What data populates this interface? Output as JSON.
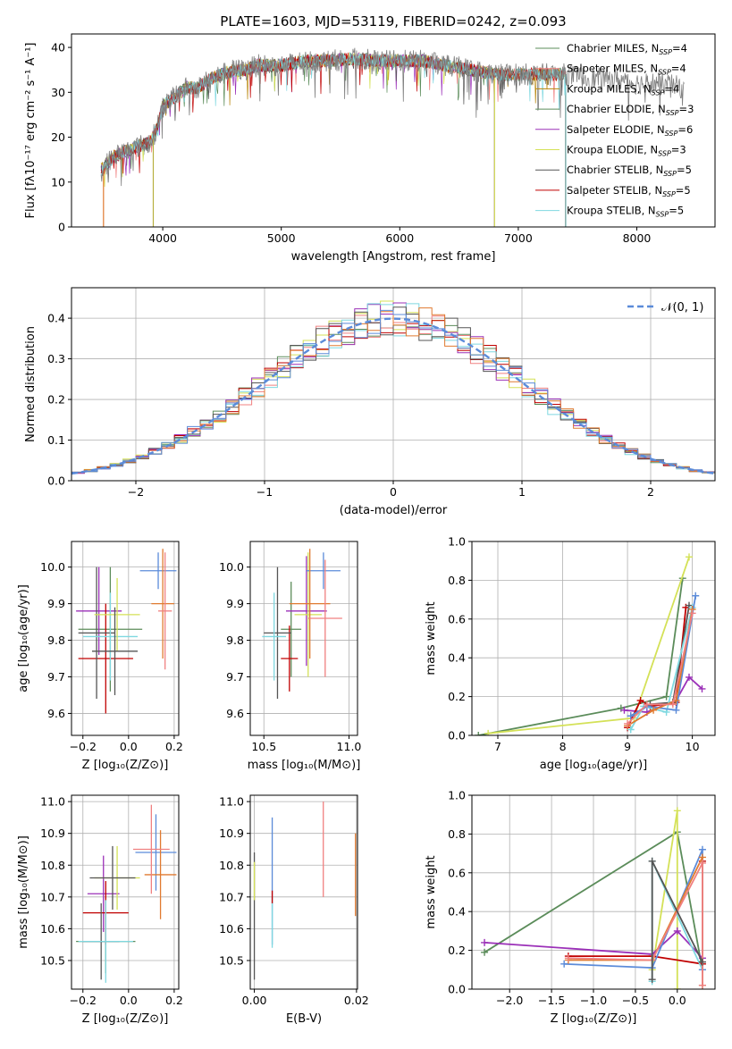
{
  "chart_data": [
    {
      "id": "spectrum",
      "type": "line",
      "title": "PLATE=1603, MJD=53119, FIBERID=0242, z=0.093",
      "xlabel": "wavelength [Angstrom, rest frame]",
      "ylabel": "Flux [fλ10⁻¹⁷ erg cm⁻² s⁻¹ A⁻¹]",
      "xlim": [
        3230,
        8660
      ],
      "ylim": [
        0,
        43
      ],
      "xticks": [
        4000,
        5000,
        6000,
        7000,
        8000
      ],
      "yticks": [
        0,
        10,
        20,
        30,
        40
      ],
      "grid": false,
      "legend_position": "upper right",
      "observed_color": "#808080",
      "envelope": {
        "x": [
          3500,
          3520,
          3600,
          3700,
          3800,
          3900,
          3950,
          4000,
          4100,
          4200,
          4300,
          4400,
          4500,
          4600,
          4700,
          4800,
          4900,
          5000,
          5200,
          5400,
          5600,
          5800,
          6000,
          6200,
          6400,
          6600,
          6800,
          7000,
          7200,
          7400,
          7600,
          7800,
          8000,
          8200,
          8400
        ],
        "y": [
          13,
          14,
          16,
          17,
          18,
          19,
          22,
          27,
          29,
          31,
          31,
          33,
          34,
          35,
          35,
          36,
          36,
          36,
          37,
          37,
          37.5,
          37,
          37,
          37,
          36,
          35,
          34,
          34,
          34,
          34,
          33,
          33,
          32,
          32,
          31
        ]
      },
      "series": [
        {
          "name": "Chabrier MILES, N",
          "sub": "SSP",
          "suffix": "=4",
          "color": "#5b8c5a",
          "end": 7400
        },
        {
          "name": "Salpeter MILES, N",
          "sub": "SSP",
          "suffix": "=4",
          "color": "#f08080",
          "end": 7400
        },
        {
          "name": "Kroupa MILES, N",
          "sub": "SSP",
          "suffix": "=4",
          "color": "#b8860b",
          "end": 7400
        },
        {
          "name": "Chabrier ELODIE, N",
          "sub": "SSP",
          "suffix": "=3",
          "color": "#5b8c5a",
          "end": 6800
        },
        {
          "name": "Salpeter ELODIE, N",
          "sub": "SSP",
          "suffix": "=6",
          "color": "#9b30b8",
          "end": 6800
        },
        {
          "name": "Kroupa ELODIE, N",
          "sub": "SSP",
          "suffix": "=3",
          "color": "#d4e157",
          "end": 6800
        },
        {
          "name": "Chabrier STELIB, N",
          "sub": "SSP",
          "suffix": "=5",
          "color": "#555555",
          "end": 7400
        },
        {
          "name": "Salpeter STELIB, N",
          "sub": "SSP",
          "suffix": "=5",
          "color": "#c00000",
          "end": 7400
        },
        {
          "name": "Kroupa STELIB, N",
          "sub": "SSP",
          "suffix": "=5",
          "color": "#7fd8e0",
          "end": 7400
        }
      ]
    },
    {
      "id": "residual-histogram",
      "type": "bar",
      "xlabel": "(data-model)/error",
      "ylabel": "Normed distribution",
      "xlim": [
        -2.5,
        2.5
      ],
      "ylim": [
        0,
        0.475
      ],
      "xticks": [
        -2,
        -1,
        0,
        1,
        2
      ],
      "yticks": [
        0.0,
        0.1,
        0.2,
        0.3,
        0.4
      ],
      "grid": true,
      "legend": {
        "label": "𝒩(0, 1)",
        "position": "upper right",
        "color": "#5b8bd9"
      },
      "bin_width": 0.1,
      "series_colors": [
        "#5b8c5a",
        "#f08080",
        "#d4e157",
        "#9b30b8",
        "#c00000",
        "#7fd8e0",
        "#555555",
        "#e07a30",
        "#5b8bd9"
      ]
    },
    {
      "id": "age-vs-metallicity",
      "type": "scatter",
      "xlabel": "Z [log₁₀(Z/Z⊙)]",
      "ylabel": "age  [log₁₀(age/yr)]",
      "xlim": [
        -0.25,
        0.22
      ],
      "ylim": [
        9.54,
        10.07
      ],
      "xticks": [
        -0.2,
        0.0,
        0.2
      ],
      "yticks": [
        9.6,
        9.7,
        9.8,
        9.9,
        10.0
      ],
      "points": [
        {
          "x": -0.08,
          "xerr": 0.14,
          "y": 9.83,
          "yerr": 0.17,
          "color": "#5b8c5a"
        },
        {
          "x": -0.13,
          "xerr": 0.1,
          "y": 9.88,
          "yerr": 0.12,
          "color": "#9b30b8"
        },
        {
          "x": -0.1,
          "xerr": 0.12,
          "y": 9.75,
          "yerr": 0.15,
          "color": "#c00000"
        },
        {
          "x": -0.14,
          "xerr": 0.08,
          "y": 9.82,
          "yerr": 0.18,
          "color": "#555555"
        },
        {
          "x": -0.08,
          "xerr": 0.12,
          "y": 9.81,
          "yerr": 0.12,
          "color": "#7fd8e0"
        },
        {
          "x": -0.05,
          "xerr": 0.1,
          "y": 9.87,
          "yerr": 0.1,
          "color": "#d4e157"
        },
        {
          "x": 0.13,
          "xerr": 0.08,
          "y": 9.99,
          "yerr": 0.05,
          "color": "#5b8bd9"
        },
        {
          "x": 0.15,
          "xerr": 0.05,
          "y": 9.9,
          "yerr": 0.15,
          "color": "#e07a30"
        },
        {
          "x": 0.16,
          "xerr": 0.03,
          "y": 9.88,
          "yerr": 0.16,
          "color": "#f08080"
        },
        {
          "x": -0.06,
          "xerr": 0.1,
          "y": 9.77,
          "yerr": 0.12,
          "color": "#555555"
        }
      ]
    },
    {
      "id": "age-vs-mass",
      "type": "scatter",
      "xlabel": "mass [log₁₀(M/M⊙)]",
      "ylabel": "",
      "xlim": [
        10.42,
        11.05
      ],
      "ylim": [
        9.54,
        10.07
      ],
      "xticks": [
        10.5,
        11.0
      ],
      "yticks": [
        9.6,
        9.7,
        9.8,
        9.9,
        10.0
      ],
      "points": [
        {
          "x": 10.66,
          "xerr": 0.06,
          "y": 9.83,
          "yerr": 0.13,
          "color": "#5b8c5a"
        },
        {
          "x": 10.75,
          "xerr": 0.12,
          "y": 9.88,
          "yerr": 0.15,
          "color": "#9b30b8"
        },
        {
          "x": 10.65,
          "xerr": 0.05,
          "y": 9.75,
          "yerr": 0.09,
          "color": "#c00000"
        },
        {
          "x": 10.58,
          "xerr": 0.08,
          "y": 9.82,
          "yerr": 0.18,
          "color": "#555555"
        },
        {
          "x": 10.56,
          "xerr": 0.07,
          "y": 9.81,
          "yerr": 0.12,
          "color": "#7fd8e0"
        },
        {
          "x": 10.76,
          "xerr": 0.08,
          "y": 9.87,
          "yerr": 0.17,
          "color": "#d4e157"
        },
        {
          "x": 10.85,
          "xerr": 0.1,
          "y": 9.99,
          "yerr": 0.05,
          "color": "#5b8bd9"
        },
        {
          "x": 10.77,
          "xerr": 0.12,
          "y": 9.9,
          "yerr": 0.15,
          "color": "#e07a30"
        },
        {
          "x": 10.86,
          "xerr": 0.1,
          "y": 9.86,
          "yerr": 0.16,
          "color": "#f08080"
        }
      ]
    },
    {
      "id": "weight-vs-age",
      "type": "line",
      "xlabel": "age  [log₁₀(age/yr)]",
      "ylabel": "mass weight",
      "xlim": [
        6.6,
        10.35
      ],
      "ylim": [
        0,
        1.0
      ],
      "xticks": [
        7,
        8,
        9,
        10
      ],
      "yticks": [
        0.0,
        0.2,
        0.4,
        0.6,
        0.8,
        1.0
      ],
      "grid": true,
      "series": [
        {
          "color": "#5b8c5a",
          "x": [
            6.7,
            8.9,
            9.6,
            9.85
          ],
          "y": [
            0.0,
            0.14,
            0.2,
            0.81
          ]
        },
        {
          "color": "#d4e157",
          "x": [
            6.85,
            9.1,
            9.95
          ],
          "y": [
            0.01,
            0.09,
            0.92
          ]
        },
        {
          "color": "#9b30b8",
          "x": [
            8.95,
            9.3,
            9.75,
            9.95,
            10.15
          ],
          "y": [
            0.13,
            0.12,
            0.18,
            0.3,
            0.24
          ]
        },
        {
          "color": "#c00000",
          "x": [
            9.0,
            9.2,
            9.35,
            9.75,
            9.9
          ],
          "y": [
            0.04,
            0.18,
            0.15,
            0.17,
            0.66
          ]
        },
        {
          "color": "#555555",
          "x": [
            9.05,
            9.35,
            9.7,
            9.95
          ],
          "y": [
            0.1,
            0.16,
            0.17,
            0.67
          ]
        },
        {
          "color": "#7fd8e0",
          "x": [
            9.05,
            9.25,
            9.6,
            10.0
          ],
          "y": [
            0.03,
            0.15,
            0.12,
            0.66
          ]
        },
        {
          "color": "#5b8bd9",
          "x": [
            9.05,
            9.3,
            9.75,
            10.05
          ],
          "y": [
            0.1,
            0.15,
            0.13,
            0.72
          ]
        },
        {
          "color": "#e07a30",
          "x": [
            9.0,
            9.4,
            9.75,
            10.0
          ],
          "y": [
            0.05,
            0.13,
            0.18,
            0.65
          ]
        },
        {
          "color": "#f08080",
          "x": [
            9.0,
            9.3,
            9.7,
            10.0
          ],
          "y": [
            0.06,
            0.16,
            0.16,
            0.63
          ]
        }
      ]
    },
    {
      "id": "mass-vs-metallicity",
      "type": "scatter",
      "xlabel": "Z [log₁₀(Z/Z⊙)]",
      "ylabel": "mass [log₁₀(M/M⊙)]",
      "xlim": [
        -0.25,
        0.22
      ],
      "ylim": [
        10.41,
        11.02
      ],
      "xticks": [
        -0.2,
        0.0,
        0.2
      ],
      "yticks": [
        10.5,
        10.6,
        10.7,
        10.8,
        10.9,
        11.0
      ],
      "points": [
        {
          "x": -0.1,
          "xerr": 0.13,
          "y": 10.56,
          "yerr": 0.1,
          "color": "#5b8c5a"
        },
        {
          "x": -0.11,
          "xerr": 0.07,
          "y": 10.71,
          "yerr": 0.12,
          "color": "#9b30b8"
        },
        {
          "x": -0.1,
          "xerr": 0.1,
          "y": 10.65,
          "yerr": 0.1,
          "color": "#c00000"
        },
        {
          "x": -0.12,
          "xerr": 0.08,
          "y": 10.56,
          "yerr": 0.12,
          "color": "#555555"
        },
        {
          "x": -0.1,
          "xerr": 0.12,
          "y": 10.56,
          "yerr": 0.13,
          "color": "#7fd8e0"
        },
        {
          "x": -0.05,
          "xerr": 0.1,
          "y": 10.76,
          "yerr": 0.1,
          "color": "#d4e157"
        },
        {
          "x": 0.12,
          "xerr": 0.09,
          "y": 10.84,
          "yerr": 0.12,
          "color": "#5b8bd9"
        },
        {
          "x": 0.14,
          "xerr": 0.07,
          "y": 10.77,
          "yerr": 0.14,
          "color": "#e07a30"
        },
        {
          "x": 0.1,
          "xerr": 0.08,
          "y": 10.85,
          "yerr": 0.14,
          "color": "#f08080"
        },
        {
          "x": -0.07,
          "xerr": 0.1,
          "y": 10.76,
          "yerr": 0.1,
          "color": "#555555"
        }
      ]
    },
    {
      "id": "mass-vs-extinction",
      "type": "scatter",
      "xlabel": "E(B-V)",
      "ylabel": "",
      "xlim": [
        -0.0008,
        0.0202
      ],
      "ylim": [
        10.41,
        11.02
      ],
      "xticks": [
        0.0,
        0.02
      ],
      "xticklabels": [
        "0.00",
        "0.02"
      ],
      "yticks": [
        10.5,
        10.6,
        10.7,
        10.8,
        10.9,
        11.0
      ],
      "points": [
        {
          "x": 0.0,
          "y": 10.64,
          "yerr": 0.2,
          "color": "#555555"
        },
        {
          "x": 0.0,
          "y": 10.75,
          "yerr": 0.06,
          "color": "#d4e157"
        },
        {
          "x": 0.0035,
          "y": 10.75,
          "yerr": 0.2,
          "color": "#5b8bd9"
        },
        {
          "x": 0.0035,
          "y": 10.62,
          "yerr": 0.08,
          "color": "#7fd8e0"
        },
        {
          "x": 0.0035,
          "y": 10.7,
          "yerr": 0.02,
          "color": "#c00000"
        },
        {
          "x": 0.0135,
          "y": 10.85,
          "yerr": 0.15,
          "color": "#f08080"
        },
        {
          "x": 0.0198,
          "y": 10.77,
          "yerr": 0.13,
          "color": "#e07a30"
        }
      ]
    },
    {
      "id": "weight-vs-metallicity",
      "type": "line",
      "xlabel": "Z [log₁₀(Z/Z⊙)]",
      "ylabel": "mass weight",
      "xlim": [
        -2.45,
        0.45
      ],
      "ylim": [
        0,
        1.0
      ],
      "xticks": [
        -2.0,
        -1.5,
        -1.0,
        -0.5,
        0.0
      ],
      "yticks": [
        0.0,
        0.2,
        0.4,
        0.6,
        0.8,
        1.0
      ],
      "grid": true,
      "series": [
        {
          "color": "#5b8c5a",
          "x": [
            -2.3,
            0.0,
            0.3
          ],
          "y": [
            0.19,
            0.81,
            0.1
          ]
        },
        {
          "color": "#d4e157",
          "x": [
            0.0,
            0.0,
            -0.3
          ],
          "y": [
            0.0,
            0.92,
            0.1
          ]
        },
        {
          "color": "#9b30b8",
          "x": [
            -2.3,
            -0.3,
            0.0,
            0.3
          ],
          "y": [
            0.24,
            0.18,
            0.3,
            0.16
          ]
        },
        {
          "color": "#c00000",
          "x": [
            -1.3,
            -0.3,
            0.3,
            0.3
          ],
          "y": [
            0.17,
            0.17,
            0.13,
            0.66
          ]
        },
        {
          "color": "#7fd8e0",
          "x": [
            -0.3,
            -0.3,
            0.3,
            0.3
          ],
          "y": [
            0.04,
            0.66,
            0.1,
            0.02
          ]
        },
        {
          "color": "#5b8bd9",
          "x": [
            -1.35,
            -0.3,
            0.3,
            0.3
          ],
          "y": [
            0.13,
            0.11,
            0.72,
            0.1
          ]
        },
        {
          "color": "#e07a30",
          "x": [
            -1.3,
            -0.3,
            0.3,
            0.3
          ],
          "y": [
            0.15,
            0.15,
            0.68,
            0.02
          ]
        },
        {
          "color": "#f08080",
          "x": [
            -1.3,
            -0.3,
            0.3,
            0.3
          ],
          "y": [
            0.16,
            0.15,
            0.65,
            0.02
          ]
        },
        {
          "color": "#555555",
          "x": [
            -0.3,
            -0.3,
            0.3
          ],
          "y": [
            0.05,
            0.66,
            0.14
          ]
        }
      ]
    }
  ]
}
